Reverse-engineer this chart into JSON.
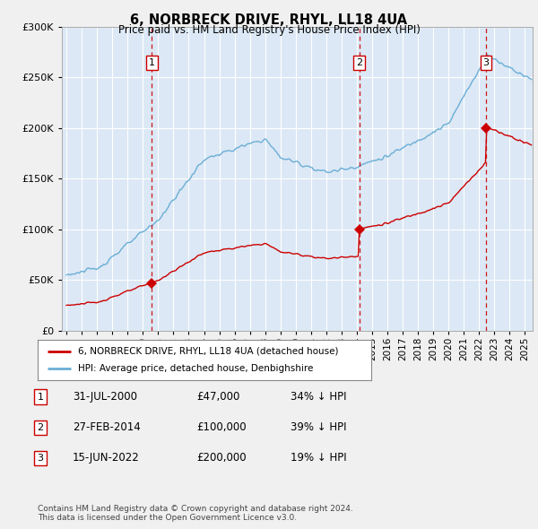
{
  "title": "6, NORBRECK DRIVE, RHYL, LL18 4UA",
  "subtitle": "Price paid vs. HM Land Registry's House Price Index (HPI)",
  "background_color": "#f0f0f0",
  "plot_bg": "#dce8f5",
  "hpi_color": "#6baed6",
  "price_color": "#cc0000",
  "vline_color": "#cc0000",
  "sales": [
    {
      "date_num": 2000.58,
      "price": 47000,
      "label": "1"
    },
    {
      "date_num": 2014.16,
      "price": 100000,
      "label": "2"
    },
    {
      "date_num": 2022.45,
      "price": 200000,
      "label": "3"
    }
  ],
  "legend_entries": [
    "6, NORBRECK DRIVE, RHYL, LL18 4UA (detached house)",
    "HPI: Average price, detached house, Denbighshire"
  ],
  "table_rows": [
    [
      "1",
      "31-JUL-2000",
      "£47,000",
      "34% ↓ HPI"
    ],
    [
      "2",
      "27-FEB-2014",
      "£100,000",
      "39% ↓ HPI"
    ],
    [
      "3",
      "15-JUN-2022",
      "£200,000",
      "19% ↓ HPI"
    ]
  ],
  "footnote": "Contains HM Land Registry data © Crown copyright and database right 2024.\nThis data is licensed under the Open Government Licence v3.0.",
  "ylim": [
    0,
    300000
  ],
  "xlim_start": 1994.7,
  "xlim_end": 2025.5
}
